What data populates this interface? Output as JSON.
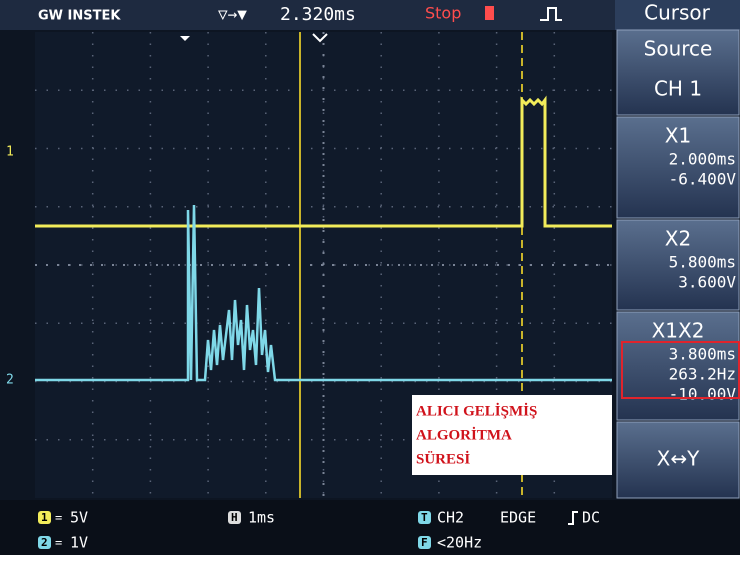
{
  "header": {
    "brand": "GW INSTEK",
    "trigger_position_symbol": "▽→▼",
    "trigger_position": "2.320ms",
    "status": "Stop"
  },
  "menu": {
    "title": "Cursor",
    "items": [
      {
        "label": "Source",
        "lines": [
          "CH 1"
        ]
      },
      {
        "label": "X1",
        "lines": [
          "2.000ms",
          "-6.400V"
        ]
      },
      {
        "label": "X2",
        "lines": [
          "5.800ms",
          "3.600V"
        ]
      },
      {
        "label": "X1X2",
        "lines": [
          "3.800ms",
          "263.2Hz",
          "-10.00V"
        ]
      },
      {
        "label": "X↔Y",
        "lines": []
      }
    ]
  },
  "channel_markers": [
    "1",
    "2"
  ],
  "footer": {
    "ch1_badge": "1",
    "ch1_scale": "5V",
    "ch2_badge": "2",
    "ch2_scale": "1V",
    "time_badge": "H",
    "time_scale": "1ms",
    "trigger_badge": "T",
    "trigger_source": "CH2",
    "trigger_type": "EDGE",
    "trigger_coupling": "DC",
    "freq_badge": "F",
    "frequency": "<20Hz"
  },
  "annotation": [
    "ALICI  GELİŞMİŞ",
    "ALGORİTMA",
    "SÜRESİ"
  ]
}
